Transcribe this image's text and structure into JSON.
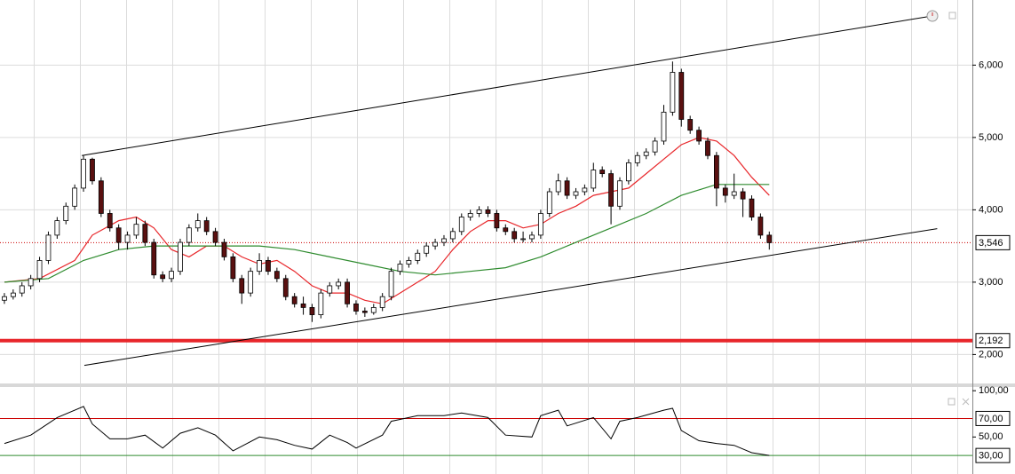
{
  "chart_data": [
    {
      "type": "candlestick",
      "xlim": [
        -0.5,
        110.1
      ],
      "ylim": [
        1600,
        6900
      ],
      "yticks": [
        {
          "value": 2000,
          "label": "2,000"
        },
        {
          "value": 3000,
          "label": "3,000"
        },
        {
          "value": 4000,
          "label": "4,000"
        },
        {
          "value": 5000,
          "label": "5,000"
        },
        {
          "value": 6000,
          "label": "6,000"
        }
      ],
      "grid": true,
      "up_color": "#ffffff",
      "down_color": "#5a1010",
      "ohlc": [
        [
          2750,
          2850,
          2700,
          2800
        ],
        [
          2800,
          2900,
          2760,
          2850
        ],
        [
          2850,
          3000,
          2800,
          2950
        ],
        [
          2950,
          3100,
          2900,
          3050
        ],
        [
          3050,
          3350,
          3000,
          3300
        ],
        [
          3300,
          3700,
          3250,
          3650
        ],
        [
          3650,
          3900,
          3600,
          3850
        ],
        [
          3850,
          4100,
          3800,
          4050
        ],
        [
          4050,
          4350,
          4000,
          4300
        ],
        [
          4300,
          4750,
          4250,
          4700
        ],
        [
          4700,
          4720,
          4350,
          4400
        ],
        [
          4400,
          4450,
          3900,
          3950
        ],
        [
          3950,
          4000,
          3700,
          3750
        ],
        [
          3750,
          3800,
          3450,
          3550
        ],
        [
          3550,
          3700,
          3450,
          3650
        ],
        [
          3650,
          3900,
          3600,
          3800
        ],
        [
          3800,
          3850,
          3500,
          3550
        ],
        [
          3550,
          3600,
          3050,
          3100
        ],
        [
          3100,
          3150,
          3000,
          3050
        ],
        [
          3050,
          3200,
          3000,
          3150
        ],
        [
          3150,
          3600,
          3100,
          3550
        ],
        [
          3550,
          3800,
          3500,
          3750
        ],
        [
          3750,
          3950,
          3700,
          3850
        ],
        [
          3850,
          3900,
          3650,
          3700
        ],
        [
          3700,
          3750,
          3500,
          3550
        ],
        [
          3550,
          3600,
          3300,
          3350
        ],
        [
          3350,
          3400,
          3000,
          3050
        ],
        [
          3050,
          3100,
          2700,
          2850
        ],
        [
          2850,
          3200,
          2800,
          3150
        ],
        [
          3150,
          3400,
          3100,
          3300
        ],
        [
          3300,
          3350,
          3100,
          3150
        ],
        [
          3150,
          3200,
          3000,
          3050
        ],
        [
          3050,
          3100,
          2750,
          2800
        ],
        [
          2800,
          2850,
          2650,
          2700
        ],
        [
          2700,
          2800,
          2550,
          2650
        ],
        [
          2650,
          2700,
          2450,
          2550
        ],
        [
          2550,
          2900,
          2500,
          2850
        ],
        [
          2850,
          3000,
          2800,
          2950
        ],
        [
          2950,
          3050,
          2900,
          3000
        ],
        [
          3000,
          3050,
          2650,
          2700
        ],
        [
          2700,
          2750,
          2550,
          2600
        ],
        [
          2600,
          2650,
          2520,
          2580
        ],
        [
          2580,
          2700,
          2550,
          2650
        ],
        [
          2650,
          2850,
          2600,
          2800
        ],
        [
          2800,
          3200,
          2750,
          3150
        ],
        [
          3150,
          3300,
          3100,
          3250
        ],
        [
          3250,
          3350,
          3200,
          3300
        ],
        [
          3300,
          3450,
          3250,
          3400
        ],
        [
          3400,
          3550,
          3350,
          3500
        ],
        [
          3500,
          3600,
          3450,
          3550
        ],
        [
          3550,
          3650,
          3500,
          3600
        ],
        [
          3600,
          3750,
          3550,
          3700
        ],
        [
          3700,
          3950,
          3650,
          3900
        ],
        [
          3900,
          4000,
          3850,
          3950
        ],
        [
          3950,
          4050,
          3900,
          4000
        ],
        [
          4000,
          4050,
          3900,
          3950
        ],
        [
          3950,
          4000,
          3700,
          3750
        ],
        [
          3750,
          3800,
          3650,
          3700
        ],
        [
          3700,
          3750,
          3550,
          3600
        ],
        [
          3600,
          3700,
          3550,
          3600
        ],
        [
          3600,
          3700,
          3550,
          3650
        ],
        [
          3650,
          4000,
          3600,
          3950
        ],
        [
          3950,
          4300,
          3900,
          4250
        ],
        [
          4250,
          4500,
          4200,
          4400
        ],
        [
          4400,
          4450,
          4150,
          4200
        ],
        [
          4200,
          4300,
          4150,
          4250
        ],
        [
          4250,
          4350,
          4200,
          4300
        ],
        [
          4300,
          4650,
          4250,
          4550
        ],
        [
          4550,
          4600,
          4450,
          4500
        ],
        [
          4500,
          4550,
          3800,
          4050
        ],
        [
          4050,
          4450,
          4000,
          4400
        ],
        [
          4400,
          4700,
          4350,
          4650
        ],
        [
          4650,
          4800,
          4600,
          4750
        ],
        [
          4750,
          4850,
          4700,
          4800
        ],
        [
          4800,
          5000,
          4750,
          4950
        ],
        [
          4950,
          5450,
          4900,
          5350
        ],
        [
          5350,
          6050,
          5300,
          5900
        ],
        [
          5900,
          5950,
          5150,
          5250
        ],
        [
          5250,
          5300,
          5050,
          5100
        ],
        [
          5100,
          5150,
          4900,
          4950
        ],
        [
          4950,
          5000,
          4700,
          4750
        ],
        [
          4750,
          4800,
          4050,
          4300
        ],
        [
          4300,
          4350,
          4100,
          4200
        ],
        [
          4200,
          4500,
          4150,
          4250
        ],
        [
          4250,
          4300,
          3900,
          4150
        ],
        [
          4150,
          4200,
          3850,
          3900
        ],
        [
          3900,
          3950,
          3600,
          3650
        ],
        [
          3650,
          3700,
          3450,
          3546
        ]
      ],
      "moving_averages": [
        {
          "color": "#e8262a",
          "x": [
            0,
            4,
            8,
            10,
            13,
            15,
            17,
            19,
            21,
            23,
            25,
            27,
            29,
            31,
            33,
            35,
            37,
            39,
            41,
            43,
            45,
            47,
            49,
            51,
            53,
            55,
            57,
            59,
            61,
            63,
            65,
            67,
            69,
            71,
            73,
            75,
            77,
            79,
            81,
            83,
            85,
            87
          ],
          "values": [
            3000,
            3050,
            3300,
            3650,
            3850,
            3900,
            3750,
            3450,
            3350,
            3500,
            3500,
            3350,
            3250,
            3300,
            3150,
            2950,
            2850,
            2850,
            2750,
            2700,
            2850,
            3000,
            3150,
            3450,
            3700,
            3850,
            3850,
            3750,
            3800,
            3950,
            4050,
            4200,
            4250,
            4300,
            4500,
            4700,
            4900,
            5000,
            4950,
            4750,
            4450,
            4200
          ]
        },
        {
          "color": "#2e8b2e",
          "x": [
            0,
            5,
            9,
            13,
            17,
            21,
            25,
            29,
            33,
            37,
            41,
            45,
            49,
            53,
            57,
            61,
            65,
            69,
            73,
            77,
            81,
            85,
            87
          ],
          "values": [
            3000,
            3050,
            3300,
            3450,
            3500,
            3500,
            3500,
            3500,
            3450,
            3350,
            3250,
            3150,
            3100,
            3150,
            3200,
            3350,
            3550,
            3750,
            3950,
            4200,
            4350,
            4350,
            4350
          ]
        }
      ],
      "trendlines": [
        {
          "color": "#000000",
          "x": [
            8.8,
            105.6
          ],
          "values": [
            4750,
            6680
          ]
        },
        {
          "color": "#000000",
          "x": [
            9.1,
            106.1
          ],
          "values": [
            1850,
            3740
          ]
        }
      ],
      "levels": [
        {
          "value": 3546,
          "label": "3,546",
          "color": "#cc0000",
          "style": "dotted"
        },
        {
          "value": 2192,
          "label": "2,192",
          "color": "#e8262a",
          "style": "thick"
        }
      ]
    },
    {
      "type": "line",
      "xlim": [
        -0.5,
        110.1
      ],
      "ylim": [
        10,
        104
      ],
      "yticks": [
        {
          "value": 50,
          "label": "50,00"
        },
        {
          "value": 100,
          "label": "100,00"
        }
      ],
      "series": [
        {
          "color": "#000000",
          "x": [
            0,
            3,
            6,
            9,
            10,
            12,
            14,
            16,
            18,
            20,
            22,
            24,
            26,
            29,
            31,
            33,
            35,
            37,
            39,
            40,
            43,
            44,
            47,
            50,
            52,
            55,
            57,
            60,
            61,
            63,
            64,
            67,
            69,
            70,
            72,
            75,
            76,
            77,
            79,
            81,
            83,
            85,
            87
          ],
          "values": [
            43,
            52,
            71,
            83,
            64,
            48,
            48,
            52,
            38,
            54,
            60,
            52,
            35,
            50,
            47,
            41,
            37,
            52,
            44,
            38,
            52,
            67,
            73,
            73,
            76,
            71,
            52,
            50,
            73,
            79,
            62,
            71,
            48,
            67,
            71,
            79,
            81,
            57,
            46,
            43,
            41,
            33,
            30
          ]
        }
      ],
      "levels": [
        {
          "value": 70,
          "label": "70,00",
          "color": "#cc0000",
          "style": "solid"
        },
        {
          "value": 30,
          "label": "30,00",
          "color": "#2e8b2e",
          "style": "solid"
        }
      ]
    }
  ]
}
